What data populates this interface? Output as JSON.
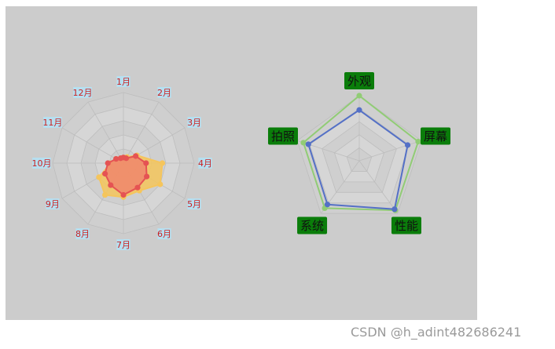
{
  "watermark": "CSDN @h_adint482686241",
  "colors": {
    "panel": "#cccccc",
    "grid_light": "#d6d6d6",
    "grid_dark": "#cfcfcf",
    "axis_line": "#bdbdbd",
    "month_label_text": "#cc1f1f",
    "month_label_bg": "#b6dff0",
    "indicator_bg": "#0a7d0a",
    "indicator_text": "#111111"
  },
  "chart_data": [
    {
      "type": "radar",
      "shape": "polygon",
      "split_number": 5,
      "max": 100,
      "indicators": [
        "1月",
        "2月",
        "3月",
        "4月",
        "5月",
        "6月",
        "7月",
        "8月",
        "9月",
        "10月",
        "11月",
        "12月"
      ],
      "series": [
        {
          "color": "#f5c55c",
          "fill": "#f5c55c",
          "fill_opacity": 0.85,
          "values": [
            8,
            10,
            22,
            55,
            60,
            45,
            48,
            52,
            40,
            18,
            12,
            8
          ]
        },
        {
          "color": "#e55353",
          "fill": "#ef8a6c",
          "fill_opacity": 0.9,
          "values": [
            8,
            8,
            20,
            32,
            38,
            40,
            45,
            36,
            30,
            22,
            12,
            8
          ]
        }
      ]
    },
    {
      "type": "radar",
      "shape": "polygon",
      "split_number": 5,
      "max": 100,
      "indicators": [
        "外观",
        "屏幕",
        "性能",
        "系统",
        "拍照"
      ],
      "series": [
        {
          "color": "#91cc75",
          "fill": "none",
          "values": [
            100,
            95,
            94,
            90,
            90
          ]
        },
        {
          "color": "#5470c6",
          "fill": "none",
          "values": [
            78,
            78,
            92,
            83,
            82
          ]
        }
      ]
    }
  ]
}
